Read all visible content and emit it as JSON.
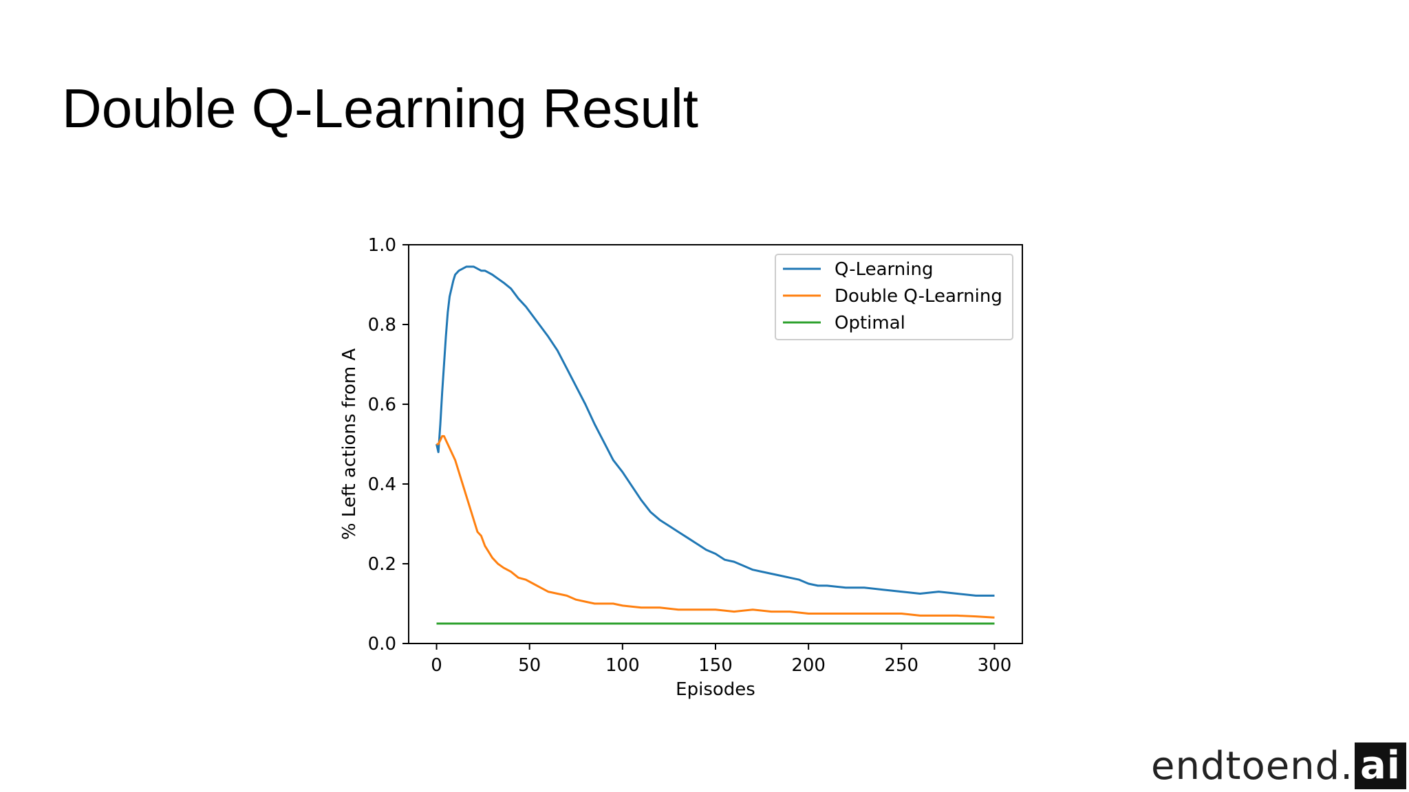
{
  "slide": {
    "title": "Double Q-Learning Result"
  },
  "logo": {
    "text": "endtoend.",
    "badge": "ai"
  },
  "chart_data": {
    "type": "line",
    "title": "",
    "xlabel": "Episodes",
    "ylabel": "% Left actions from A",
    "xlim": [
      -15,
      315
    ],
    "ylim": [
      0.0,
      1.0
    ],
    "xticks": [
      0,
      50,
      100,
      150,
      200,
      250,
      300
    ],
    "yticks": [
      0.0,
      0.2,
      0.4,
      0.6,
      0.8,
      1.0
    ],
    "xtick_labels": [
      "0",
      "50",
      "100",
      "150",
      "200",
      "250",
      "300"
    ],
    "ytick_labels": [
      "0.0",
      "0.2",
      "0.4",
      "0.6",
      "0.8",
      "1.0"
    ],
    "grid": false,
    "legend_position": "top-right",
    "series": [
      {
        "name": "Q-Learning",
        "color": "#1f77b4",
        "x": [
          0,
          1,
          2,
          3,
          4,
          5,
          6,
          7,
          8,
          9,
          10,
          12,
          14,
          16,
          18,
          20,
          22,
          24,
          26,
          28,
          30,
          33,
          36,
          40,
          44,
          48,
          52,
          56,
          60,
          65,
          70,
          75,
          80,
          85,
          90,
          95,
          100,
          105,
          110,
          115,
          120,
          125,
          130,
          135,
          140,
          145,
          150,
          155,
          160,
          165,
          170,
          175,
          180,
          185,
          190,
          195,
          200,
          205,
          210,
          220,
          230,
          240,
          250,
          260,
          270,
          280,
          290,
          300
        ],
        "y": [
          0.5,
          0.48,
          0.55,
          0.63,
          0.7,
          0.77,
          0.83,
          0.87,
          0.89,
          0.91,
          0.925,
          0.935,
          0.94,
          0.945,
          0.945,
          0.945,
          0.94,
          0.935,
          0.935,
          0.93,
          0.925,
          0.915,
          0.905,
          0.89,
          0.865,
          0.845,
          0.82,
          0.795,
          0.77,
          0.735,
          0.69,
          0.645,
          0.6,
          0.55,
          0.505,
          0.46,
          0.43,
          0.395,
          0.36,
          0.33,
          0.31,
          0.295,
          0.28,
          0.265,
          0.25,
          0.235,
          0.225,
          0.21,
          0.205,
          0.195,
          0.185,
          0.18,
          0.175,
          0.17,
          0.165,
          0.16,
          0.15,
          0.145,
          0.145,
          0.14,
          0.14,
          0.135,
          0.13,
          0.125,
          0.13,
          0.125,
          0.12,
          0.12
        ]
      },
      {
        "name": "Double Q-Learning",
        "color": "#ff7f0e",
        "x": [
          0,
          1,
          2,
          3,
          4,
          5,
          6,
          8,
          10,
          12,
          14,
          16,
          18,
          20,
          22,
          24,
          26,
          28,
          30,
          33,
          36,
          40,
          44,
          48,
          52,
          56,
          60,
          65,
          70,
          75,
          80,
          85,
          90,
          95,
          100,
          110,
          120,
          130,
          140,
          150,
          160,
          170,
          180,
          190,
          200,
          210,
          220,
          230,
          240,
          250,
          260,
          270,
          280,
          290,
          300
        ],
        "y": [
          0.5,
          0.5,
          0.51,
          0.52,
          0.52,
          0.51,
          0.5,
          0.48,
          0.46,
          0.43,
          0.4,
          0.37,
          0.34,
          0.31,
          0.28,
          0.27,
          0.245,
          0.23,
          0.215,
          0.2,
          0.19,
          0.18,
          0.165,
          0.16,
          0.15,
          0.14,
          0.13,
          0.125,
          0.12,
          0.11,
          0.105,
          0.1,
          0.1,
          0.1,
          0.095,
          0.09,
          0.09,
          0.085,
          0.085,
          0.085,
          0.08,
          0.085,
          0.08,
          0.08,
          0.075,
          0.075,
          0.075,
          0.075,
          0.075,
          0.075,
          0.07,
          0.07,
          0.07,
          0.068,
          0.065
        ]
      },
      {
        "name": "Optimal",
        "color": "#2ca02c",
        "x": [
          0,
          300
        ],
        "y": [
          0.05,
          0.05
        ]
      }
    ]
  }
}
